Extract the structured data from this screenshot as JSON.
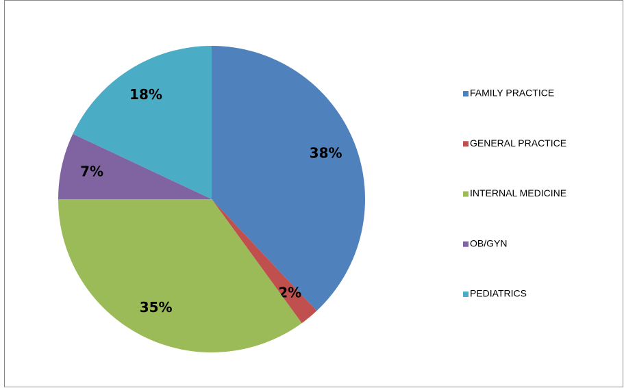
{
  "chart_data": {
    "type": "pie",
    "categories": [
      "FAMILY PRACTICE",
      "GENERAL PRACTICE",
      "INTERNAL MEDICINE",
      "OB/GYN",
      "PEDIATRICS"
    ],
    "values": [
      38,
      2,
      35,
      7,
      18
    ],
    "value_labels": [
      "38%",
      "2%",
      "35%",
      "7%",
      "18%"
    ],
    "colors": [
      "#4f81bd",
      "#c0504d",
      "#9bbb59",
      "#8064a2",
      "#4bacc6"
    ],
    "legend": "right"
  }
}
